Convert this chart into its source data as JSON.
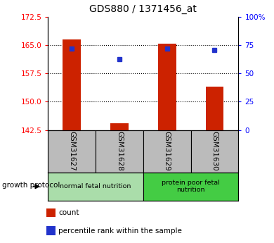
{
  "title": "GDS880 / 1371456_at",
  "samples": [
    "GSM31627",
    "GSM31628",
    "GSM31629",
    "GSM31630"
  ],
  "bar_values": [
    166.5,
    144.2,
    165.5,
    154.0
  ],
  "percentile_values": [
    72,
    63,
    72,
    71
  ],
  "left_ylim": [
    142.5,
    172.5
  ],
  "right_ylim": [
    0,
    100
  ],
  "left_yticks": [
    142.5,
    150.0,
    157.5,
    165.0,
    172.5
  ],
  "right_yticks": [
    0,
    25,
    50,
    75,
    100
  ],
  "right_yticklabels": [
    "0",
    "25",
    "50",
    "75",
    "100%"
  ],
  "bar_color": "#cc2200",
  "dot_color": "#2233cc",
  "bar_bottom": 142.5,
  "grid_yticks": [
    165.0,
    157.5,
    150.0
  ],
  "groups": [
    {
      "label": "normal fetal nutrition",
      "samples": [
        0,
        1
      ],
      "color": "#aaddaa"
    },
    {
      "label": "protein poor fetal\nnutrition",
      "samples": [
        2,
        3
      ],
      "color": "#44cc44"
    }
  ],
  "group_label": "growth protocol",
  "legend_items": [
    {
      "color": "#cc2200",
      "label": "count"
    },
    {
      "color": "#2233cc",
      "label": "percentile rank within the sample"
    }
  ],
  "tick_area_bg": "#bbbbbb",
  "plot_border_color": "#000000"
}
